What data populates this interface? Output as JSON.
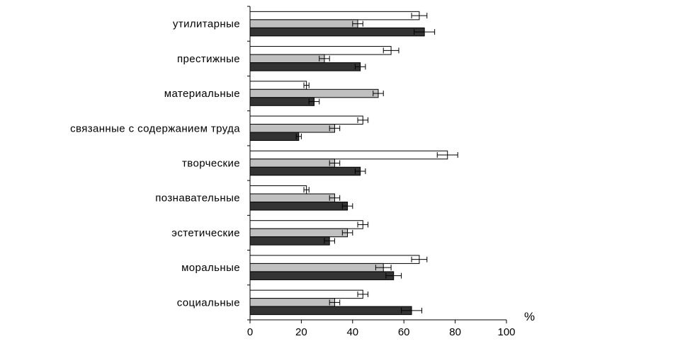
{
  "chart_data": {
    "type": "bar",
    "orientation": "horizontal",
    "categories": [
      "утилитарные",
      "престижные",
      "материальные",
      "связанные с содержанием труда",
      "творческие",
      "познавательные",
      "эстетические",
      "моральные",
      "социальные"
    ],
    "series": [
      {
        "values": [
          66,
          55,
          22,
          44,
          77,
          22,
          44,
          66,
          44
        ],
        "errors": [
          3,
          3,
          1,
          2,
          4,
          1,
          2,
          3,
          2
        ],
        "color": "#ffffff"
      },
      {
        "values": [
          42,
          29,
          50,
          33,
          33,
          33,
          38,
          52,
          33
        ],
        "errors": [
          2,
          2,
          2,
          2,
          2,
          2,
          2,
          3,
          2
        ],
        "color": "#c0c0c0"
      },
      {
        "values": [
          68,
          43,
          25,
          19,
          43,
          38,
          31,
          56,
          63
        ],
        "errors": [
          4,
          2,
          2,
          1,
          2,
          2,
          2,
          3,
          4
        ],
        "color": "#333333"
      }
    ],
    "xlim": [
      0,
      100
    ],
    "x_ticks": [
      "0",
      "20",
      "40",
      "60",
      "80",
      "100"
    ],
    "xlabel": "%",
    "grid": false,
    "legend": "none"
  }
}
